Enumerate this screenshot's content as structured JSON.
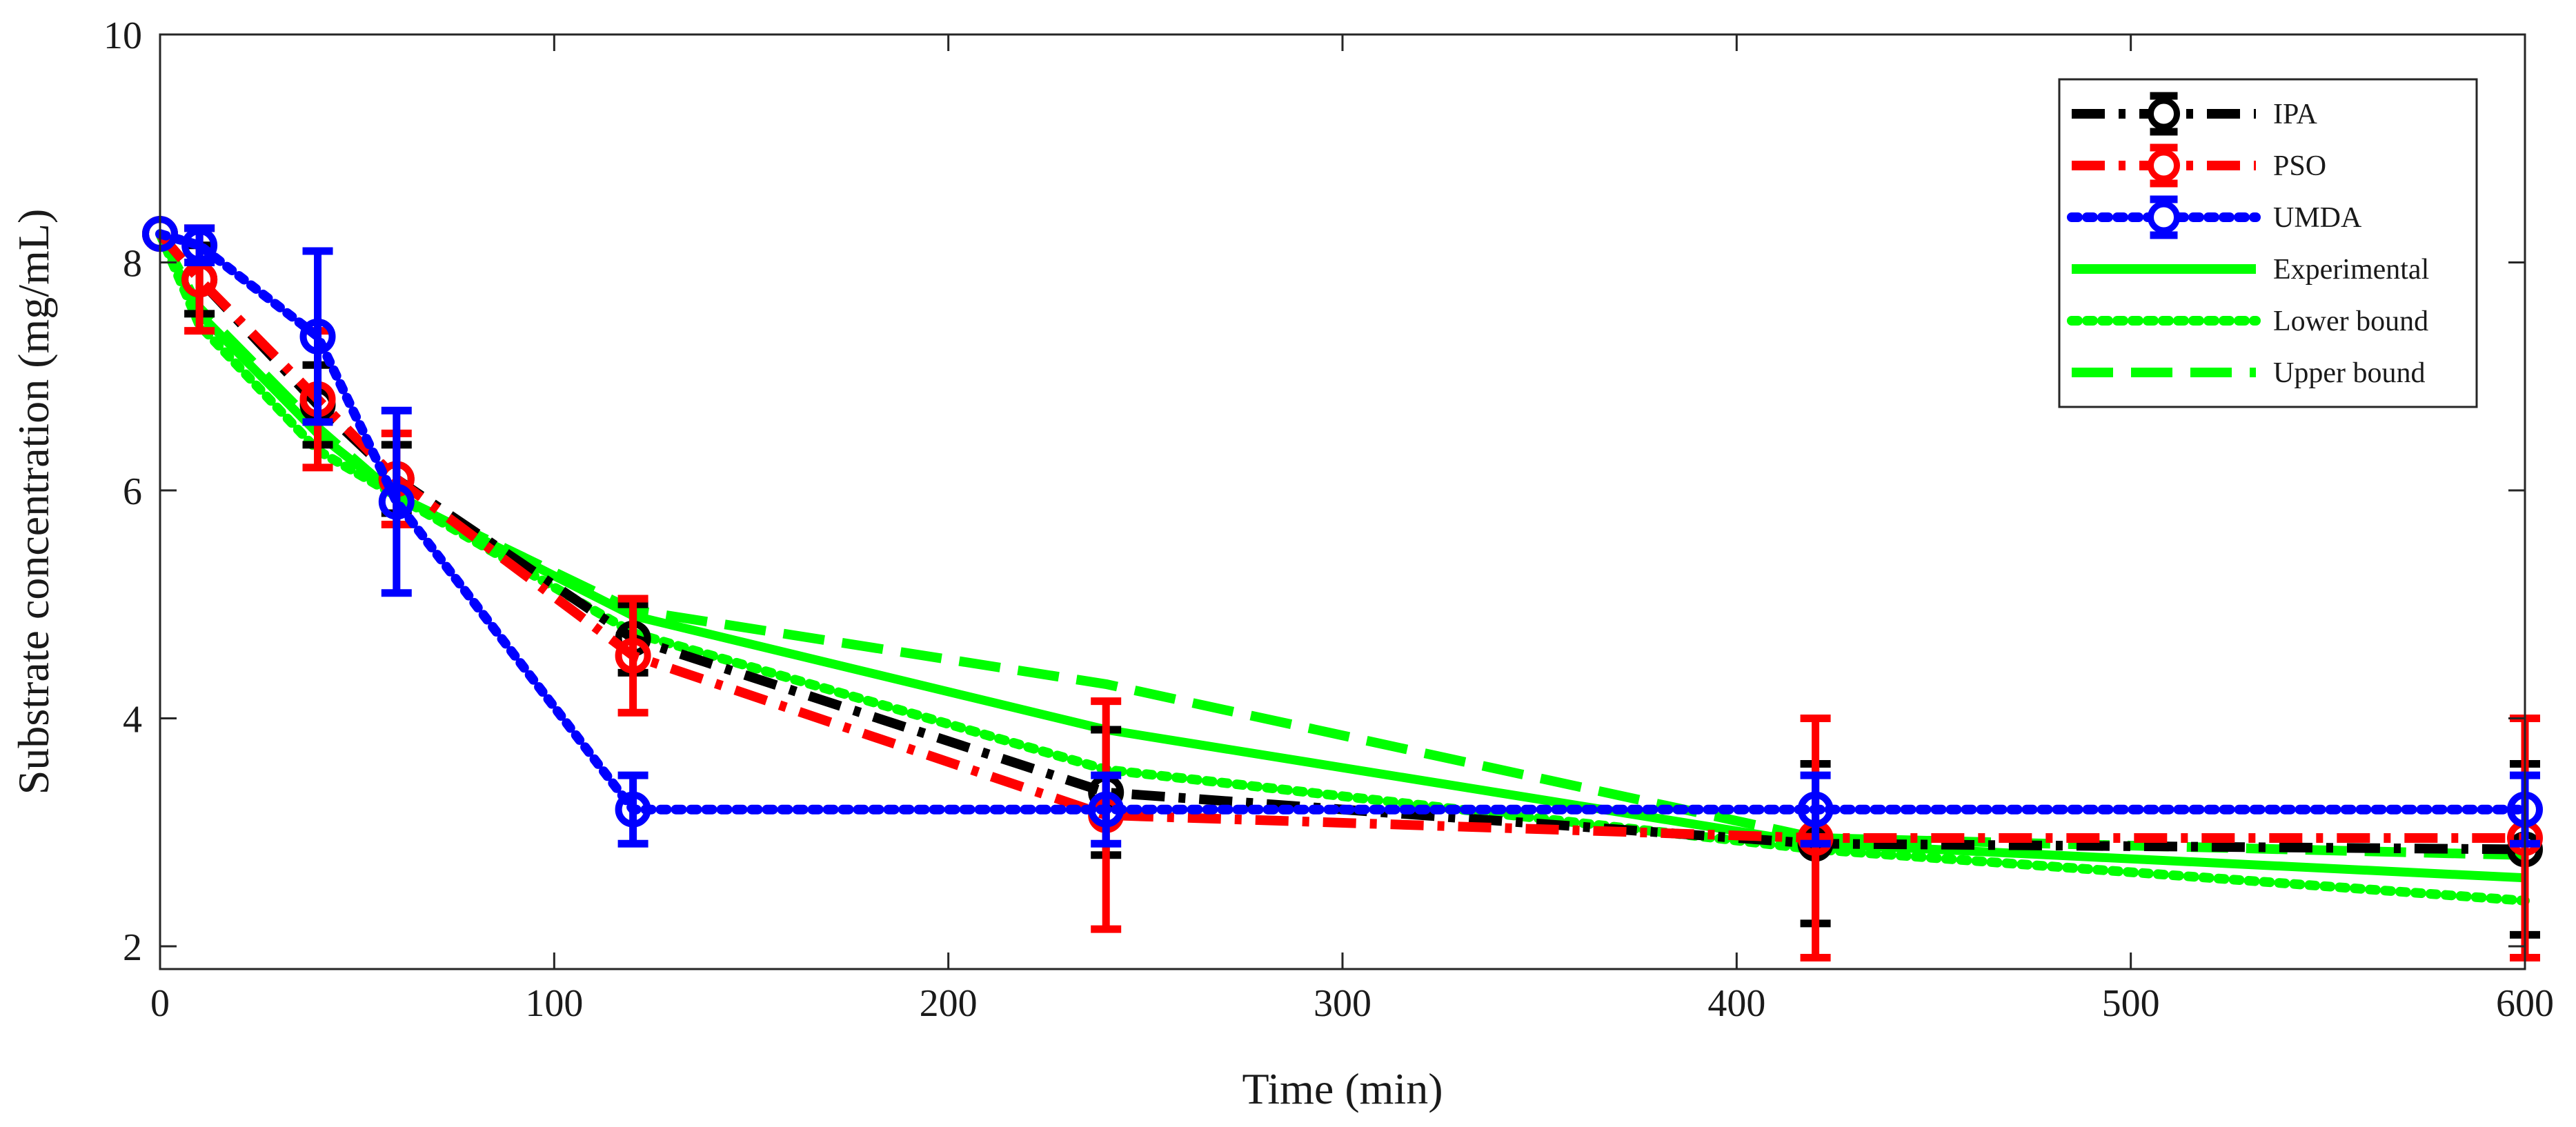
{
  "chart_data": {
    "type": "line",
    "title": "",
    "xlabel": "Time (min)",
    "ylabel": "Substrate concentration (mg/mL)",
    "xlim": [
      0,
      600
    ],
    "ylim": [
      1.8,
      10
    ],
    "xticks": [
      0,
      100,
      200,
      300,
      400,
      500,
      600
    ],
    "yticks": [
      2,
      4,
      6,
      8,
      10
    ],
    "xtick_labels": [
      "0",
      "100",
      "200",
      "300",
      "400",
      "500",
      "600"
    ],
    "ytick_labels": [
      "2",
      "4",
      "6",
      "8",
      "10"
    ],
    "grid": false,
    "legend_position": "top-right",
    "series": [
      {
        "name": "IPA",
        "color": "#000000",
        "style": "dashdot",
        "marker": "circle",
        "x": [
          0,
          10,
          40,
          60,
          120,
          240,
          420,
          600
        ],
        "y": [
          8.25,
          7.85,
          6.75,
          6.1,
          4.7,
          3.35,
          2.9,
          2.85
        ],
        "err": [
          0,
          0.3,
          0.35,
          0.3,
          0.3,
          0.55,
          0.7,
          0.75
        ]
      },
      {
        "name": "PSO",
        "color": "#ff0000",
        "style": "dashdot",
        "marker": "circle",
        "x": [
          0,
          10,
          40,
          60,
          120,
          240,
          420,
          600
        ],
        "y": [
          8.25,
          7.85,
          6.8,
          6.1,
          4.55,
          3.15,
          2.95,
          2.95
        ],
        "err": [
          0,
          0.45,
          0.6,
          0.4,
          0.5,
          1.0,
          1.05,
          1.05
        ]
      },
      {
        "name": "UMDA",
        "color": "#0000ff",
        "style": "dotted",
        "marker": "circle",
        "x": [
          0,
          10,
          40,
          60,
          120,
          240,
          420,
          600
        ],
        "y": [
          8.25,
          8.15,
          7.35,
          5.9,
          3.2,
          3.2,
          3.2,
          3.2
        ],
        "err": [
          0,
          0.15,
          0.75,
          0.8,
          0.3,
          0.3,
          0.3,
          0.3
        ]
      },
      {
        "name": "Experimental",
        "color": "#00ff00",
        "style": "solid",
        "marker": "none",
        "x": [
          0,
          10,
          40,
          60,
          120,
          240,
          420,
          600
        ],
        "y": [
          8.25,
          7.55,
          6.5,
          5.95,
          4.9,
          3.9,
          2.9,
          2.6
        ]
      },
      {
        "name": "Lower bound",
        "color": "#00ff00",
        "style": "dotted",
        "marker": "none",
        "x": [
          0,
          10,
          40,
          60,
          120,
          240,
          420,
          600
        ],
        "y": [
          8.25,
          7.45,
          6.35,
          5.95,
          4.75,
          3.55,
          2.85,
          2.4
        ]
      },
      {
        "name": "Upper bound",
        "color": "#00ff00",
        "style": "dashed",
        "marker": "none",
        "x": [
          0,
          10,
          40,
          60,
          120,
          240,
          420,
          600
        ],
        "y": [
          8.25,
          7.6,
          6.55,
          5.95,
          4.95,
          4.3,
          2.95,
          2.8
        ]
      }
    ]
  }
}
